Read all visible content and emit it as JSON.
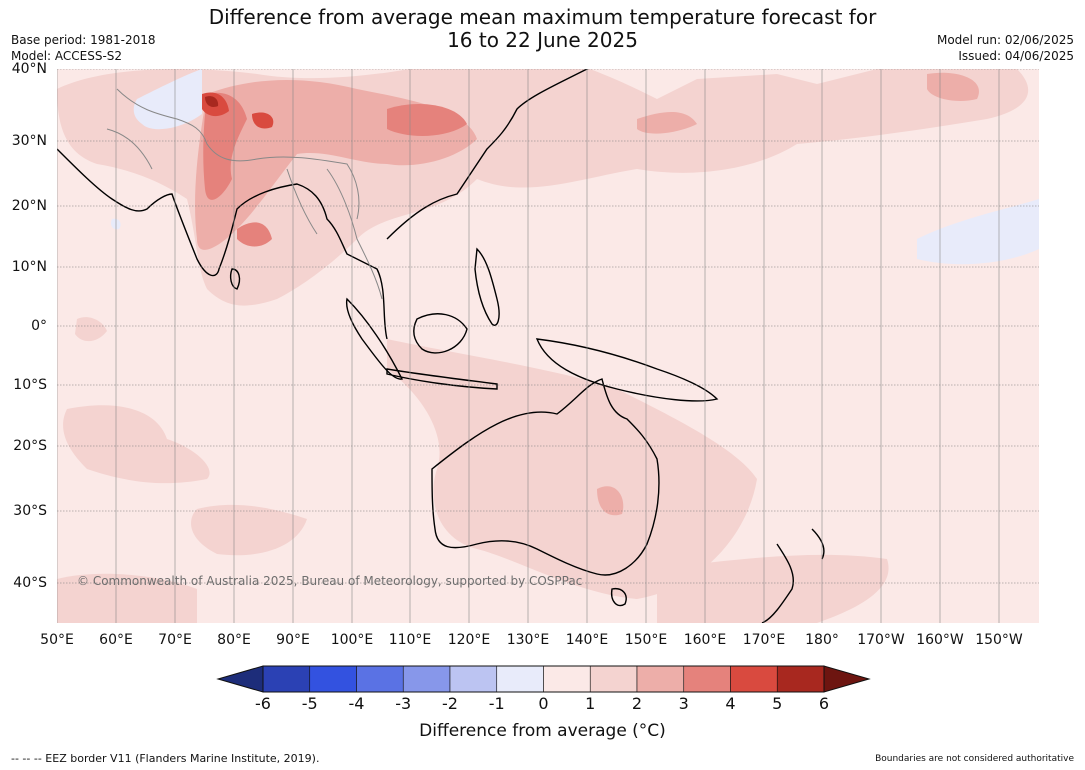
{
  "title_line1": "Difference from average mean maximum temperature forecast for",
  "title_line2": "16 to 22 June 2025",
  "base_period": "Base period: 1981-2018",
  "model": "Model: ACCESS-S2",
  "model_run": "Model run: 02/06/2025",
  "issued": "Issued: 04/06/2025",
  "lat_labels": [
    "40°N",
    "30°N",
    "20°N",
    "10°N",
    "0°",
    "10°S",
    "20°S",
    "30°S",
    "40°S"
  ],
  "lon_labels": [
    "50°E",
    "60°E",
    "70°E",
    "80°E",
    "90°E",
    "100°E",
    "110°E",
    "120°E",
    "130°E",
    "140°E",
    "150°E",
    "160°E",
    "170°E",
    "180°",
    "170°W",
    "160°W",
    "150°W"
  ],
  "copyright": "© Commonwealth of Australia 2025, Bureau of Meteorology, supported by COSPPac",
  "colorbar": {
    "ticks": [
      "-6",
      "-5",
      "-4",
      "-3",
      "-2",
      "-1",
      "0",
      "1",
      "2",
      "3",
      "4",
      "5",
      "6"
    ],
    "label": "Difference from average (°C)",
    "colors": [
      "#1d2d7a",
      "#2b41b4",
      "#3352e0",
      "#5a72e4",
      "#8797ea",
      "#bcc4f2",
      "#e8ebfa",
      "#fbe9e7",
      "#f4d3d0",
      "#edaea9",
      "#e5827c",
      "#d94a3f",
      "#a8281f",
      "#6d1510"
    ]
  },
  "eez_note": "-- -- -- EEZ border V11 (Flanders Marine Institute, 2019).",
  "boundaries_note": "Boundaries are not considered authoritative"
}
